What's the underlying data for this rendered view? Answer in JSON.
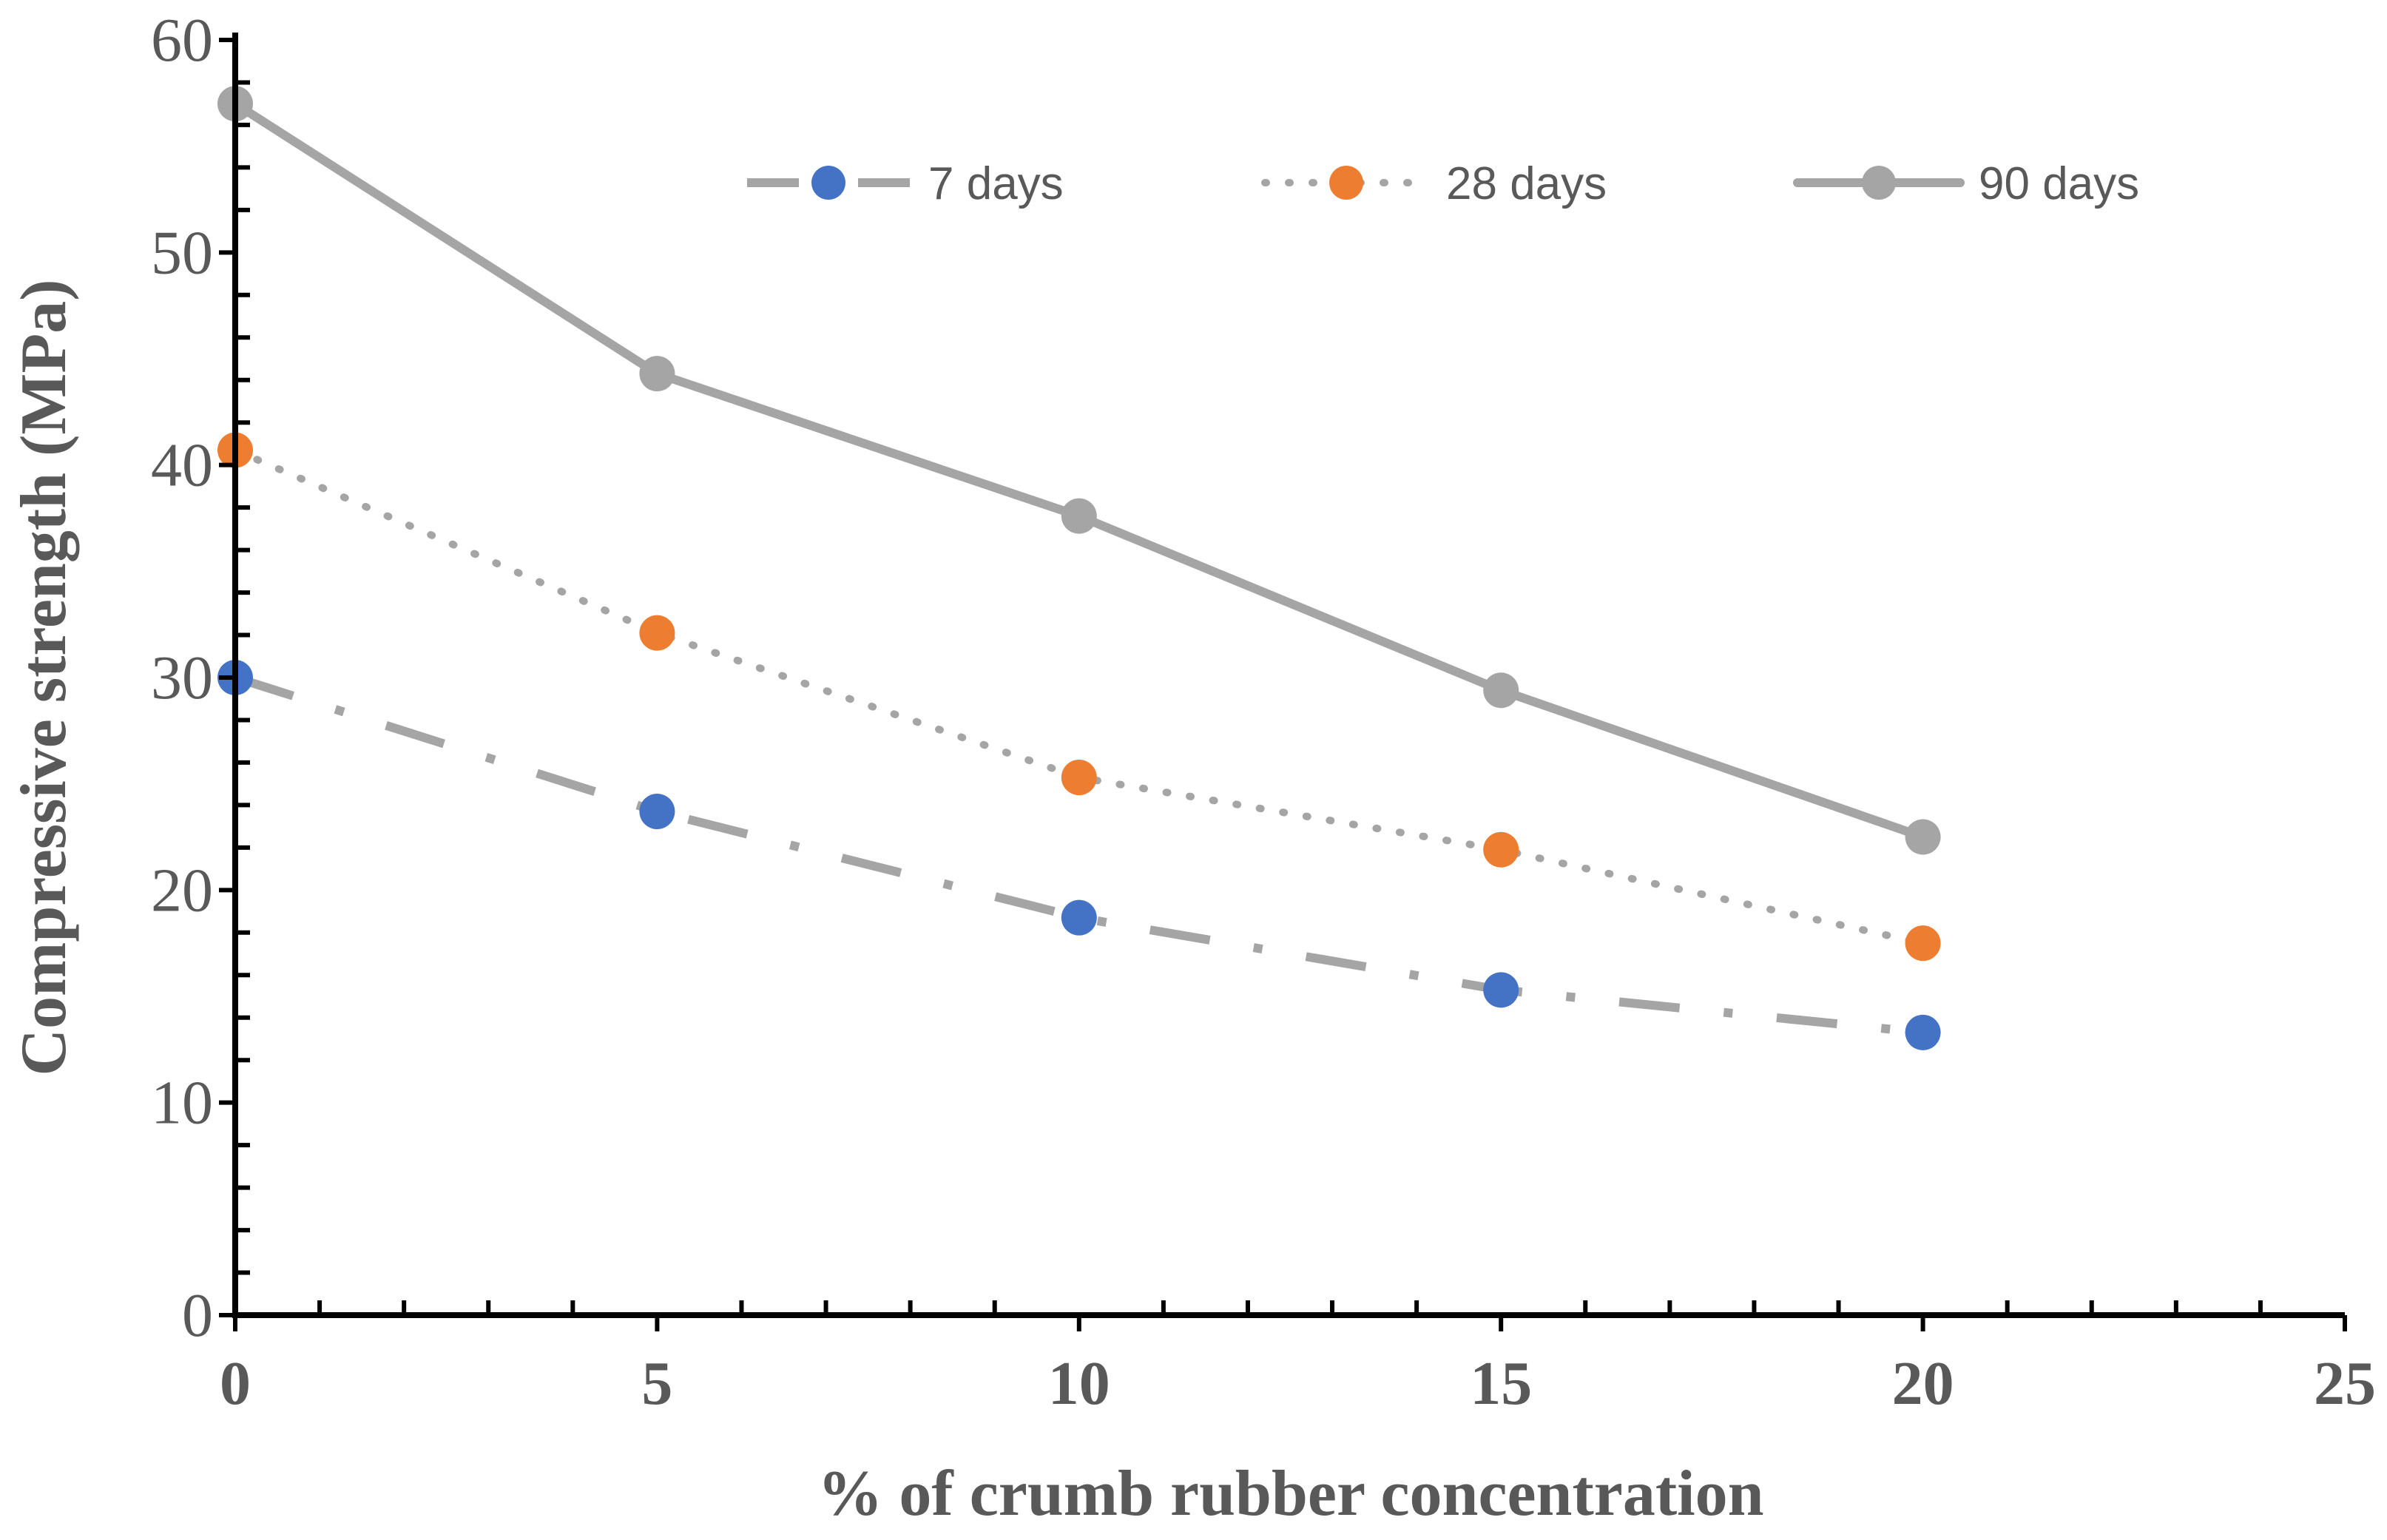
{
  "chart_data": {
    "type": "line",
    "xlabel": "% of crumb rubber concentration",
    "ylabel": "Compressive strength (MPa)",
    "xlim": [
      0,
      25
    ],
    "ylim": [
      0,
      60
    ],
    "x_ticks": [
      "0",
      "5",
      "10",
      "15",
      "20",
      "25"
    ],
    "y_ticks": [
      "0",
      "10",
      "20",
      "30",
      "40",
      "50",
      "60"
    ],
    "grid": false,
    "legend_position": "top",
    "x": [
      0,
      5,
      10,
      15,
      20
    ],
    "series": [
      {
        "name": "7 days",
        "values": [
          30.0,
          23.7,
          18.7,
          15.3,
          13.3
        ],
        "marker_color": "#4472C4",
        "line_color": "#A5A5A5",
        "line_style": "dash-dot"
      },
      {
        "name": "28 days",
        "values": [
          40.7,
          32.1,
          25.3,
          21.9,
          17.5
        ],
        "marker_color": "#ED7D31",
        "line_color": "#A5A5A5",
        "line_style": "dotted"
      },
      {
        "name": "90 days",
        "values": [
          57.0,
          44.3,
          37.6,
          29.4,
          22.5
        ],
        "marker_color": "#A5A5A5",
        "line_color": "#A5A5A5",
        "line_style": "solid"
      }
    ],
    "axis_color": "#000000",
    "text_color": "#595959"
  }
}
